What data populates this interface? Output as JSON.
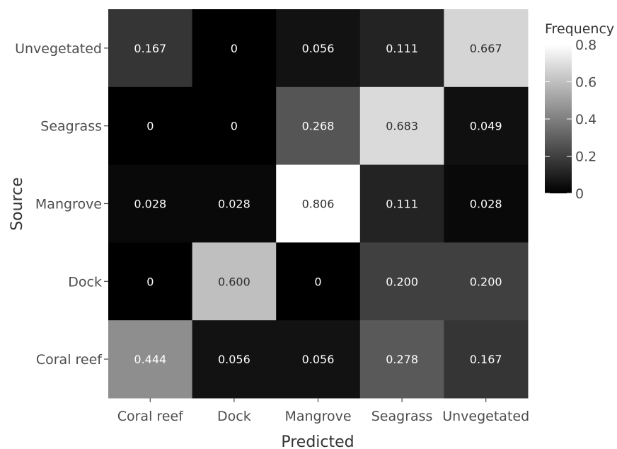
{
  "chart_data": {
    "type": "heatmap",
    "xlabel": "Predicted",
    "ylabel": "Source",
    "x_categories": [
      "Coral reef",
      "Dock",
      "Mangrove",
      "Seagrass",
      "Unvegetated"
    ],
    "y_categories": [
      "Unvegetated",
      "Seagrass",
      "Mangrove",
      "Dock",
      "Coral reef"
    ],
    "values": [
      [
        0.167,
        0,
        0.056,
        0.111,
        0.667
      ],
      [
        0,
        0,
        0.268,
        0.683,
        0.049
      ],
      [
        0.028,
        0.028,
        0.806,
        0.111,
        0.028
      ],
      [
        0,
        0.6,
        0,
        0.2,
        0.2
      ],
      [
        0.444,
        0.056,
        0.056,
        0.278,
        0.167
      ]
    ],
    "labels": [
      [
        "0.167",
        "0",
        "0.056",
        "0.111",
        "0.667"
      ],
      [
        "0",
        "0",
        "0.268",
        "0.683",
        "0.049"
      ],
      [
        "0.028",
        "0.028",
        "0.806",
        "0.111",
        "0.028"
      ],
      [
        "0",
        "0.600",
        "0",
        "0.200",
        "0.200"
      ],
      [
        "0.444",
        "0.056",
        "0.056",
        "0.278",
        "0.167"
      ]
    ],
    "colorbar": {
      "title": "Frequency",
      "range": [
        0,
        0.8
      ],
      "ticks": [
        "0",
        "0.2",
        "0.4",
        "0.6",
        "0.8"
      ],
      "low_color": "#000000",
      "high_color": "#ffffff"
    },
    "legend_position": "right",
    "grid": false
  }
}
